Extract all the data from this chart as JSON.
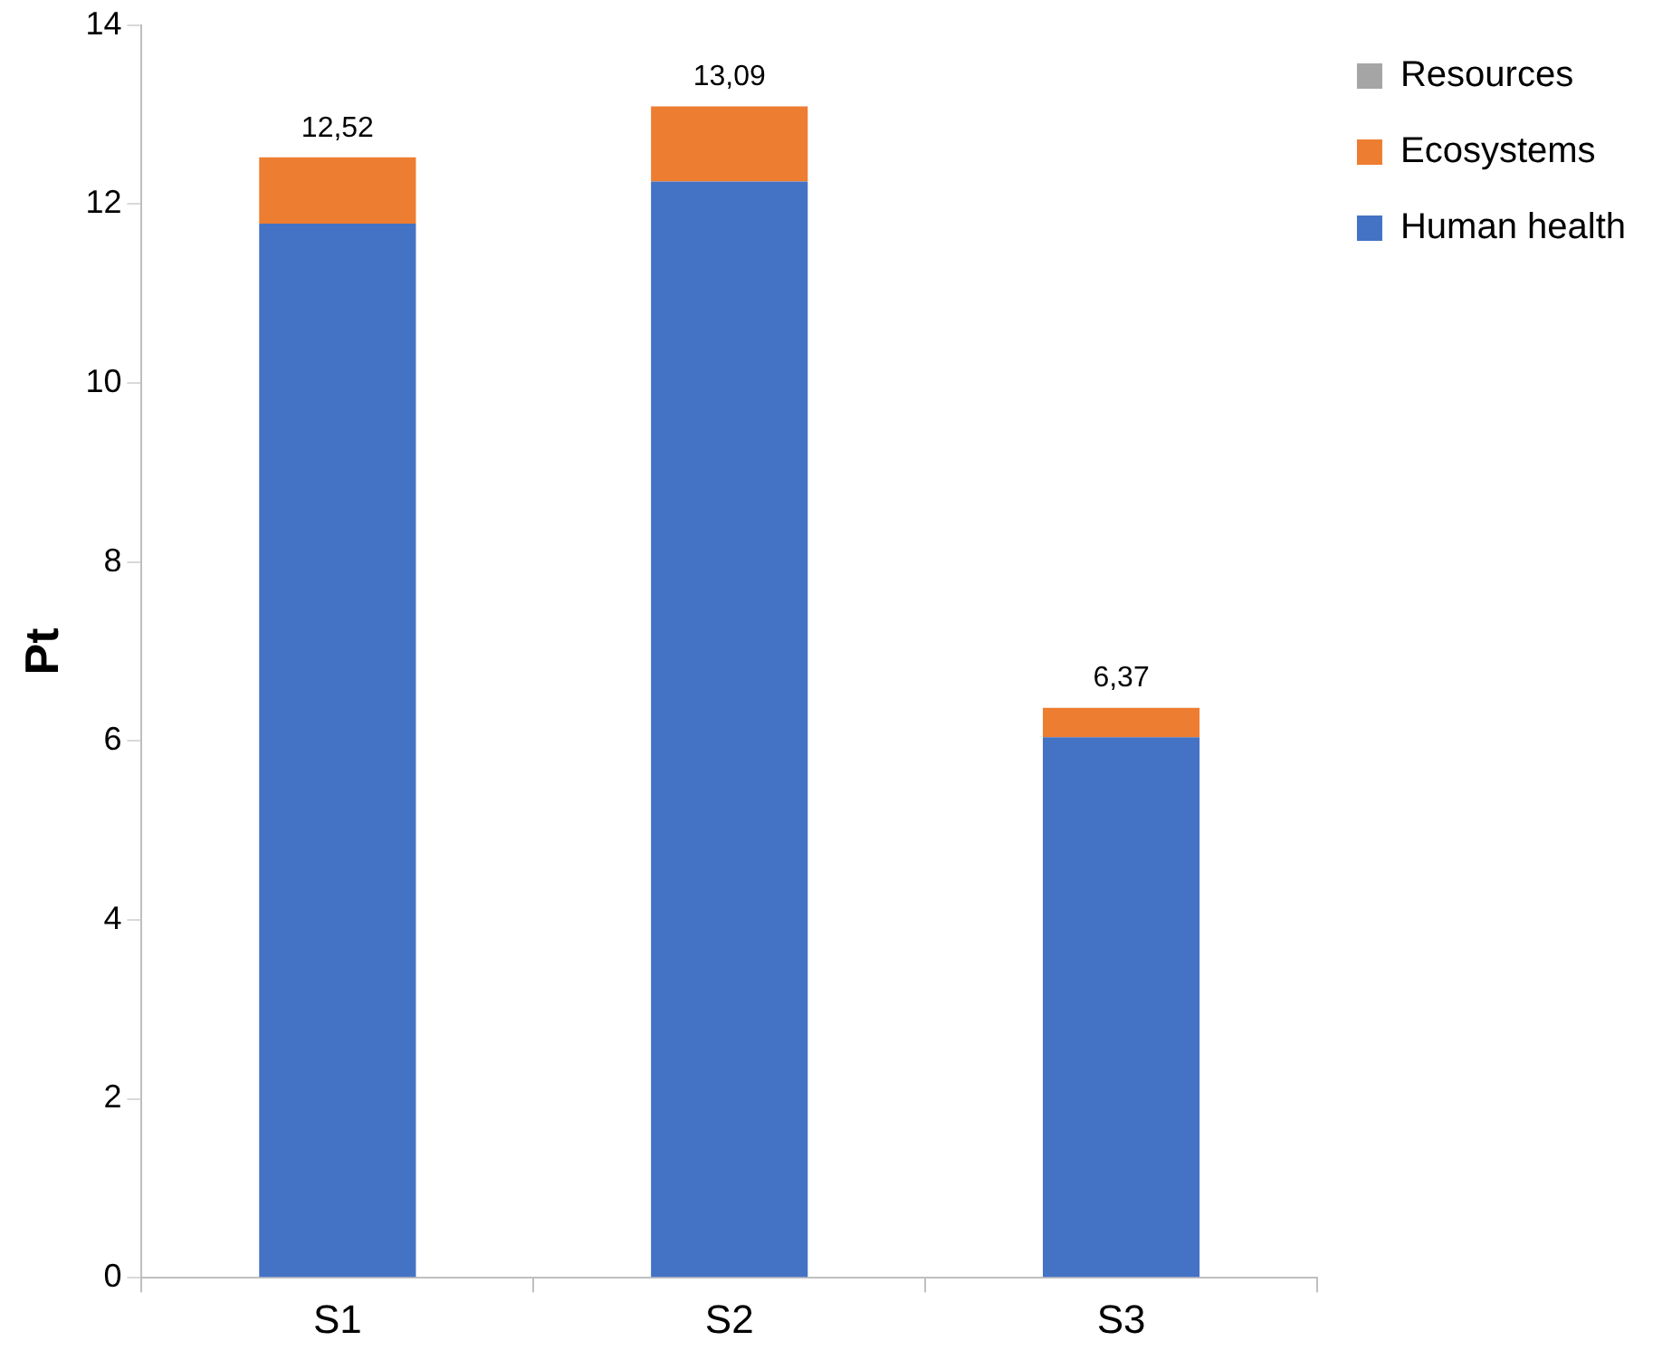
{
  "chart_data": {
    "type": "bar",
    "stacked": true,
    "ylabel": "Pt",
    "categories": [
      "S1",
      "S2",
      "S3"
    ],
    "series": [
      {
        "name": "Human health",
        "color": "#4472c4",
        "values": [
          11.78,
          12.25,
          6.04
        ]
      },
      {
        "name": "Ecosystems",
        "color": "#ed7d31",
        "values": [
          0.74,
          0.84,
          0.33
        ]
      },
      {
        "name": "Resources",
        "color": "#a5a5a5",
        "values": [
          null,
          null,
          null
        ]
      }
    ],
    "totals": [
      "12,52",
      "13,09",
      "6,37"
    ],
    "ylim": [
      0,
      14
    ],
    "yticks": [
      0,
      2,
      4,
      6,
      8,
      10,
      12,
      14
    ],
    "grid": false,
    "legend": "right"
  }
}
